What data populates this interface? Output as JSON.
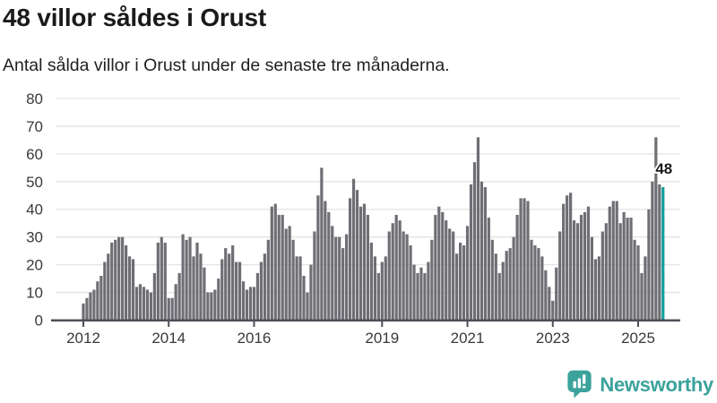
{
  "header": {
    "title": "48 villor såldes i Orust",
    "subtitle": "Antal sålda villor i Orust under de senaste tre månaderna."
  },
  "branding": {
    "name": "Newsworthy",
    "logo_icon": "bar-chart-speech-bubble-icon",
    "color": "#3ba29c"
  },
  "chart_data": {
    "type": "bar",
    "title": "48 villor såldes i Orust",
    "subtitle": "Antal sålda villor i Orust under de senaste tre månaderna.",
    "unit": "sålda villor (rullande 3 månader)",
    "frequency": "monthly",
    "x_start": "2012-01",
    "x_end": "2025-08",
    "values": [
      6,
      8,
      10,
      11,
      14,
      16,
      21,
      24,
      28,
      29,
      30,
      30,
      27,
      23,
      22,
      12,
      13,
      12,
      11,
      10,
      17,
      28,
      30,
      28,
      8,
      8,
      13,
      17,
      31,
      29,
      30,
      23,
      28,
      24,
      19,
      10,
      10,
      11,
      15,
      22,
      26,
      24,
      27,
      21,
      21,
      14,
      11,
      12,
      12,
      17,
      21,
      24,
      29,
      41,
      42,
      38,
      38,
      33,
      34,
      29,
      23,
      23,
      16,
      10,
      20,
      32,
      45,
      55,
      43,
      39,
      34,
      30,
      30,
      26,
      31,
      44,
      51,
      47,
      41,
      42,
      38,
      28,
      23,
      17,
      21,
      23,
      32,
      35,
      38,
      36,
      32,
      31,
      27,
      20,
      17,
      19,
      17,
      21,
      29,
      38,
      41,
      39,
      36,
      33,
      32,
      24,
      28,
      27,
      34,
      49,
      57,
      66,
      50,
      48,
      37,
      29,
      24,
      17,
      21,
      25,
      26,
      30,
      38,
      44,
      44,
      43,
      29,
      27,
      26,
      23,
      18,
      12,
      7,
      19,
      32,
      42,
      45,
      46,
      36,
      35,
      38,
      39,
      41,
      30,
      22,
      23,
      32,
      35,
      41,
      43,
      43,
      35,
      39,
      37,
      37,
      29,
      27,
      17,
      23,
      40,
      50,
      66,
      49,
      48
    ],
    "highlight_last": {
      "value": 48,
      "label": "48",
      "color": "#0da09a"
    },
    "bar_color": "#6e6e74",
    "grid_color": "#e3e3e3",
    "axis_color": "#4e4e56",
    "tick_text_color": "#3a3a3a",
    "ylim": [
      0,
      80
    ],
    "yticks": [
      0,
      10,
      20,
      30,
      40,
      50,
      60,
      70,
      80
    ],
    "xtick_years": [
      2012,
      2014,
      2016,
      2019,
      2021,
      2023,
      2025
    ],
    "grid": "horizontal",
    "legend": "none"
  }
}
